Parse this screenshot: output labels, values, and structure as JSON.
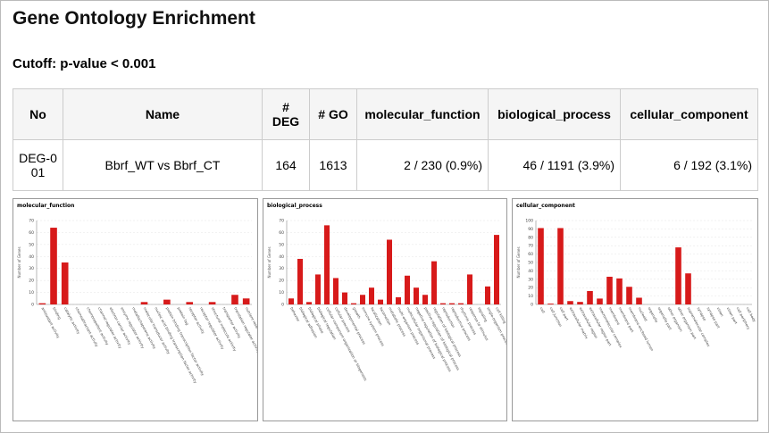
{
  "header": {
    "title": "Gene Ontology Enrichment",
    "cutoff": "Cutoff: p-value < 0.001"
  },
  "table": {
    "columns": [
      "No",
      "Name",
      "# DEG",
      "# GO",
      "molecular_function",
      "biological_process",
      "cellular_component"
    ],
    "rows": [
      [
        "DEG-001",
        "Bbrf_WT vs Bbrf_CT",
        "164",
        "1613",
        "2 / 230 (0.9%)",
        "46 / 1191 (3.9%)",
        "6 / 192 (3.1%)"
      ]
    ]
  },
  "chart_data": [
    {
      "type": "bar",
      "title": "molecular_function",
      "y_label": "Number of Genes",
      "color": "#d71a1a",
      "categories": [
        "antioxidant activity",
        "binding",
        "catalytic activity",
        "chemoattractant activity",
        "chemorepellent activity",
        "channel regulator activity",
        "electron carrier activity",
        "enzyme regulator activity",
        "metallochaperone activity",
        "molecular transducer activity",
        "nucleic acid binding transcription factor activity",
        "protein binding transcription factor activity",
        "protein tag",
        "receptor activity",
        "receptor regulator activity",
        "structural molecule activity",
        "transporter activity",
        "translation regulator activity",
        "nutrient reservoir activity"
      ],
      "values": [
        1,
        64,
        35,
        0,
        0,
        0,
        0,
        0,
        0,
        2,
        0,
        4,
        0,
        2,
        0,
        2,
        0,
        8,
        5
      ],
      "ylim": [
        0,
        70
      ],
      "yticks": [
        0,
        10,
        20,
        30,
        40,
        50,
        60,
        70
      ]
    },
    {
      "type": "bar",
      "title": "biological_process",
      "y_label": "Number of Genes",
      "color": "#d71a1a",
      "categories": [
        "behavior",
        "biological adhesion",
        "biological phase",
        "biological regulation",
        "cellular component organization or biogenesis",
        "cellular process",
        "developmental process",
        "growth",
        "immune system process",
        "localization",
        "locomotion",
        "metabolic process",
        "multi-organism process",
        "multicellular organismal process",
        "negative regulation of biological process",
        "positive regulation of biological process",
        "regulation of biological process",
        "reproduction",
        "reproductive process",
        "rhythmic process",
        "response to stimulus",
        "signaling",
        "single-organism process",
        "cell killing"
      ],
      "values": [
        5,
        38,
        2,
        25,
        66,
        22,
        10,
        1,
        8,
        14,
        4,
        54,
        6,
        24,
        14,
        8,
        36,
        1,
        1,
        1,
        25,
        0,
        15,
        58
      ],
      "ylim": [
        0,
        70
      ],
      "yticks": [
        0,
        10,
        20,
        30,
        40,
        50,
        60,
        70
      ]
    },
    {
      "type": "bar",
      "title": "cellular_component",
      "y_label": "Number of Genes",
      "color": "#d71a1a",
      "categories": [
        "cell",
        "cell junction",
        "cell part",
        "extracellular matrix",
        "extracellular region",
        "extracellular region part",
        "macromolecular complex",
        "membrane",
        "membrane part",
        "membrane-enclosed lumen",
        "nucleoid",
        "organelle",
        "organelle part",
        "other organism",
        "other organism part",
        "supramolecular complex",
        "synapse",
        "synapse part",
        "virion",
        "virion part",
        "cell periphery",
        "cell body"
      ],
      "values": [
        91,
        1,
        91,
        4,
        3,
        16,
        7,
        33,
        31,
        21,
        8,
        0,
        0,
        0,
        68,
        37,
        0,
        0,
        0,
        0,
        0,
        0
      ],
      "ylim": [
        0,
        100
      ],
      "yticks": [
        0,
        10,
        20,
        30,
        40,
        50,
        60,
        70,
        80,
        90,
        100
      ]
    }
  ]
}
